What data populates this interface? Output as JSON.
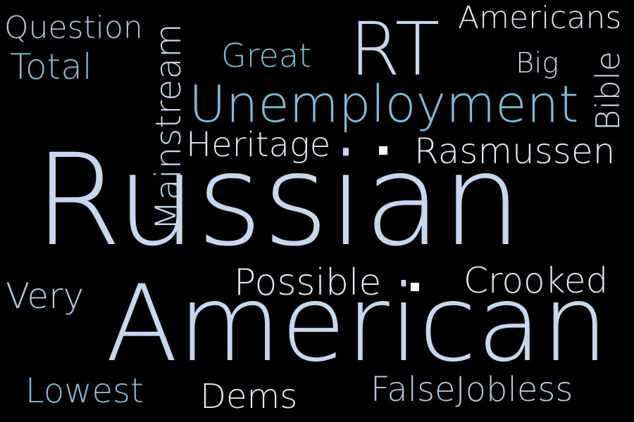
{
  "word_cloud": {
    "words": {
      "question": "Question",
      "total": "Total",
      "mainstream": "Mainstream",
      "great": "Great",
      "rt": "RT",
      "americans": "Americans",
      "big": "Big",
      "bible": "Bible",
      "unemployment": "Unemployment",
      "heritage": "Heritage",
      "rasmussen": "Rasmussen",
      "russian": "Russian",
      "very": "Very",
      "possible": "Possible",
      "crooked": "Crooked",
      "american": "American",
      "lowest": "Lowest",
      "dems": "Dems",
      "falsejobless": "FalseJobless"
    },
    "colors": {
      "background": "#000000",
      "light": "#dfe8f4",
      "pale": "#c5d8ee",
      "mid": "#aecbe6",
      "teal": "#7fbcd9"
    }
  }
}
